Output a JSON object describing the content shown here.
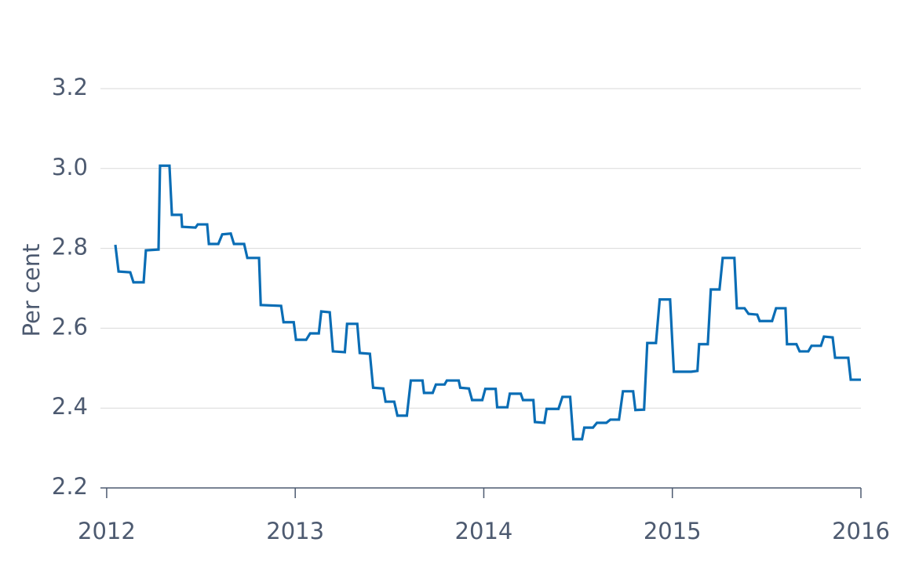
{
  "chart_data": {
    "type": "line",
    "y_label": "Per cent",
    "x": [
      2012.046,
      2012.063,
      2012.125,
      2012.142,
      2012.196,
      2012.208,
      2012.275,
      2012.283,
      2012.333,
      2012.346,
      2012.396,
      2012.4,
      2012.471,
      2012.483,
      2012.533,
      2012.542,
      2012.592,
      2012.613,
      2012.658,
      2012.675,
      2012.729,
      2012.746,
      2012.808,
      2012.817,
      2012.925,
      2012.938,
      2012.992,
      2013.004,
      2013.058,
      2013.079,
      2013.125,
      2013.138,
      2013.183,
      2013.2,
      2013.263,
      2013.275,
      2013.329,
      2013.342,
      2013.396,
      2013.413,
      2013.467,
      2013.479,
      2013.525,
      2013.542,
      2013.592,
      2013.613,
      2013.675,
      2013.683,
      2013.729,
      2013.746,
      2013.792,
      2013.804,
      2013.867,
      2013.875,
      2013.921,
      2013.938,
      2013.992,
      2014.008,
      2014.063,
      2014.071,
      2014.125,
      2014.138,
      2014.196,
      2014.208,
      2014.263,
      2014.271,
      2014.321,
      2014.333,
      2014.396,
      2014.417,
      2014.458,
      2014.475,
      2014.521,
      2014.533,
      2014.579,
      2014.6,
      2014.65,
      2014.671,
      2014.717,
      2014.738,
      2014.792,
      2014.804,
      2014.85,
      2014.867,
      2014.913,
      2014.933,
      2014.988,
      2015.008,
      2015.1,
      2015.133,
      2015.142,
      2015.188,
      2015.204,
      2015.25,
      2015.267,
      2015.329,
      2015.342,
      2015.383,
      2015.404,
      2015.45,
      2015.463,
      2015.529,
      2015.55,
      2015.6,
      2015.608,
      2015.658,
      2015.675,
      2015.721,
      2015.738,
      2015.788,
      2015.804,
      2015.85,
      2015.863,
      2015.933,
      2015.946,
      2016
    ],
    "series": [
      {
        "color": "#0a6db5",
        "values": [
          2.809,
          2.742,
          2.74,
          2.715,
          2.715,
          2.795,
          2.797,
          3.007,
          3.007,
          2.884,
          2.884,
          2.854,
          2.852,
          2.86,
          2.86,
          2.811,
          2.811,
          2.835,
          2.837,
          2.811,
          2.811,
          2.776,
          2.776,
          2.658,
          2.656,
          2.615,
          2.615,
          2.571,
          2.571,
          2.587,
          2.587,
          2.642,
          2.64,
          2.542,
          2.54,
          2.611,
          2.611,
          2.538,
          2.536,
          2.451,
          2.449,
          2.416,
          2.416,
          2.381,
          2.381,
          2.469,
          2.469,
          2.438,
          2.438,
          2.459,
          2.459,
          2.469,
          2.469,
          2.451,
          2.449,
          2.42,
          2.42,
          2.448,
          2.448,
          2.402,
          2.402,
          2.436,
          2.436,
          2.42,
          2.42,
          2.365,
          2.363,
          2.398,
          2.398,
          2.428,
          2.428,
          2.322,
          2.322,
          2.351,
          2.351,
          2.363,
          2.363,
          2.371,
          2.371,
          2.442,
          2.442,
          2.395,
          2.396,
          2.563,
          2.563,
          2.672,
          2.672,
          2.491,
          2.491,
          2.493,
          2.56,
          2.56,
          2.697,
          2.697,
          2.776,
          2.776,
          2.65,
          2.65,
          2.636,
          2.634,
          2.618,
          2.618,
          2.65,
          2.65,
          2.56,
          2.56,
          2.542,
          2.542,
          2.556,
          2.556,
          2.579,
          2.577,
          2.526,
          2.526,
          2.471,
          2.471
        ]
      }
    ],
    "xlim": [
      2011.967,
      2016
    ],
    "xticks": [
      2012,
      2013,
      2014,
      2015,
      2016
    ],
    "ylim": [
      2.2,
      3.2
    ],
    "yticks": [
      {
        "value": 2.2,
        "label": "2.2"
      },
      {
        "value": 2.4,
        "label": "2.4"
      },
      {
        "value": 2.6,
        "label": "2.6"
      },
      {
        "value": 2.8,
        "label": "2.8"
      },
      {
        "value": 3.0,
        "label": "3.0"
      },
      {
        "value": 3.2,
        "label": "3.2"
      }
    ],
    "grid": true
  }
}
